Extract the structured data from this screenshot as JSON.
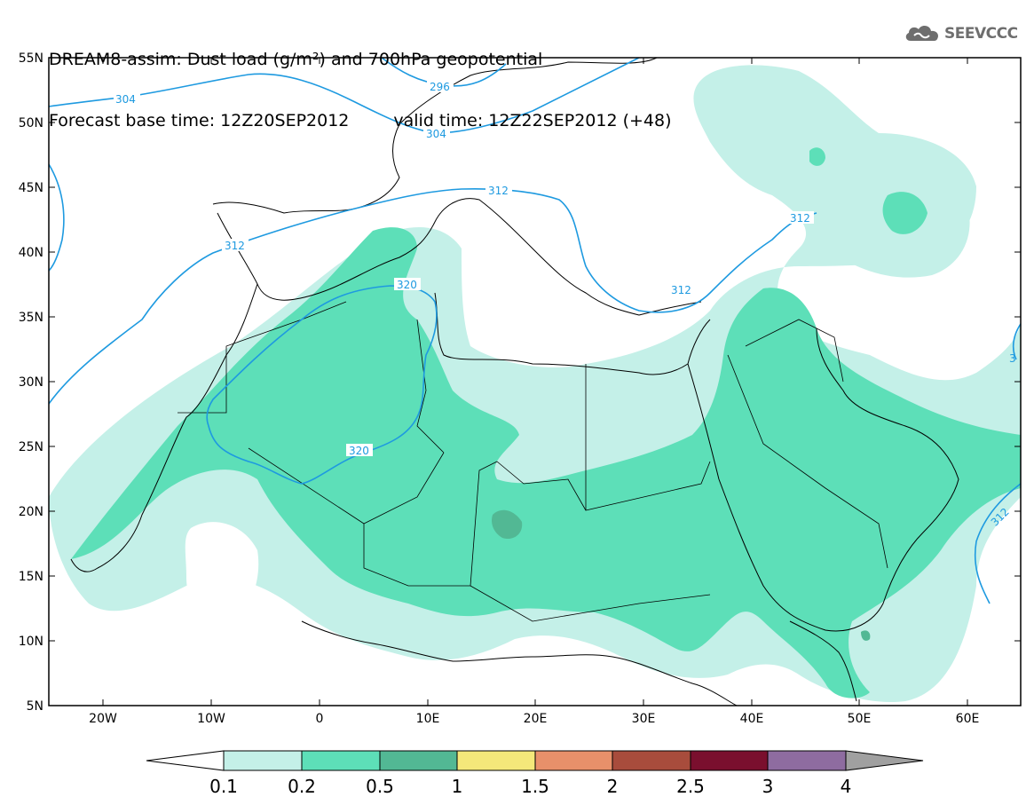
{
  "header": {
    "title": "DREAM8-assim: Dust load (g/m²) and 700hPa geopotential",
    "base_time": "Forecast base time: 12Z20SEP2012",
    "valid_time": "valid time: 12Z22SEP2012 (+48)"
  },
  "logo": {
    "text": "SEEVCCC",
    "icon": "cloud-logo-icon"
  },
  "axes": {
    "lat_labels": [
      "55N",
      "50N",
      "45N",
      "40N",
      "35N",
      "30N",
      "25N",
      "20N",
      "15N",
      "10N",
      "5N"
    ],
    "lon_labels": [
      "20W",
      "10W",
      "0",
      "10E",
      "20E",
      "30E",
      "40E",
      "50E",
      "60E"
    ]
  },
  "contour_labels": [
    "304",
    "296",
    "304",
    "312",
    "312",
    "312",
    "320",
    "320",
    "312",
    "312",
    "3"
  ],
  "colorbar": {
    "ticks": [
      "0.1",
      "0.2",
      "0.5",
      "1",
      "1.5",
      "2",
      "2.5",
      "3",
      "4"
    ],
    "colors": [
      "#c4f0e8",
      "#5ddfb8",
      "#52b894",
      "#f4e87a",
      "#e8906a",
      "#a84c3c",
      "#7a0f2e",
      "#8e6ca0",
      "#a0a0a0"
    ]
  },
  "colors": {
    "level1": "#c4f0e8",
    "level2": "#5ddfb8",
    "level3": "#52b894",
    "contour": "#1e9ae0"
  }
}
